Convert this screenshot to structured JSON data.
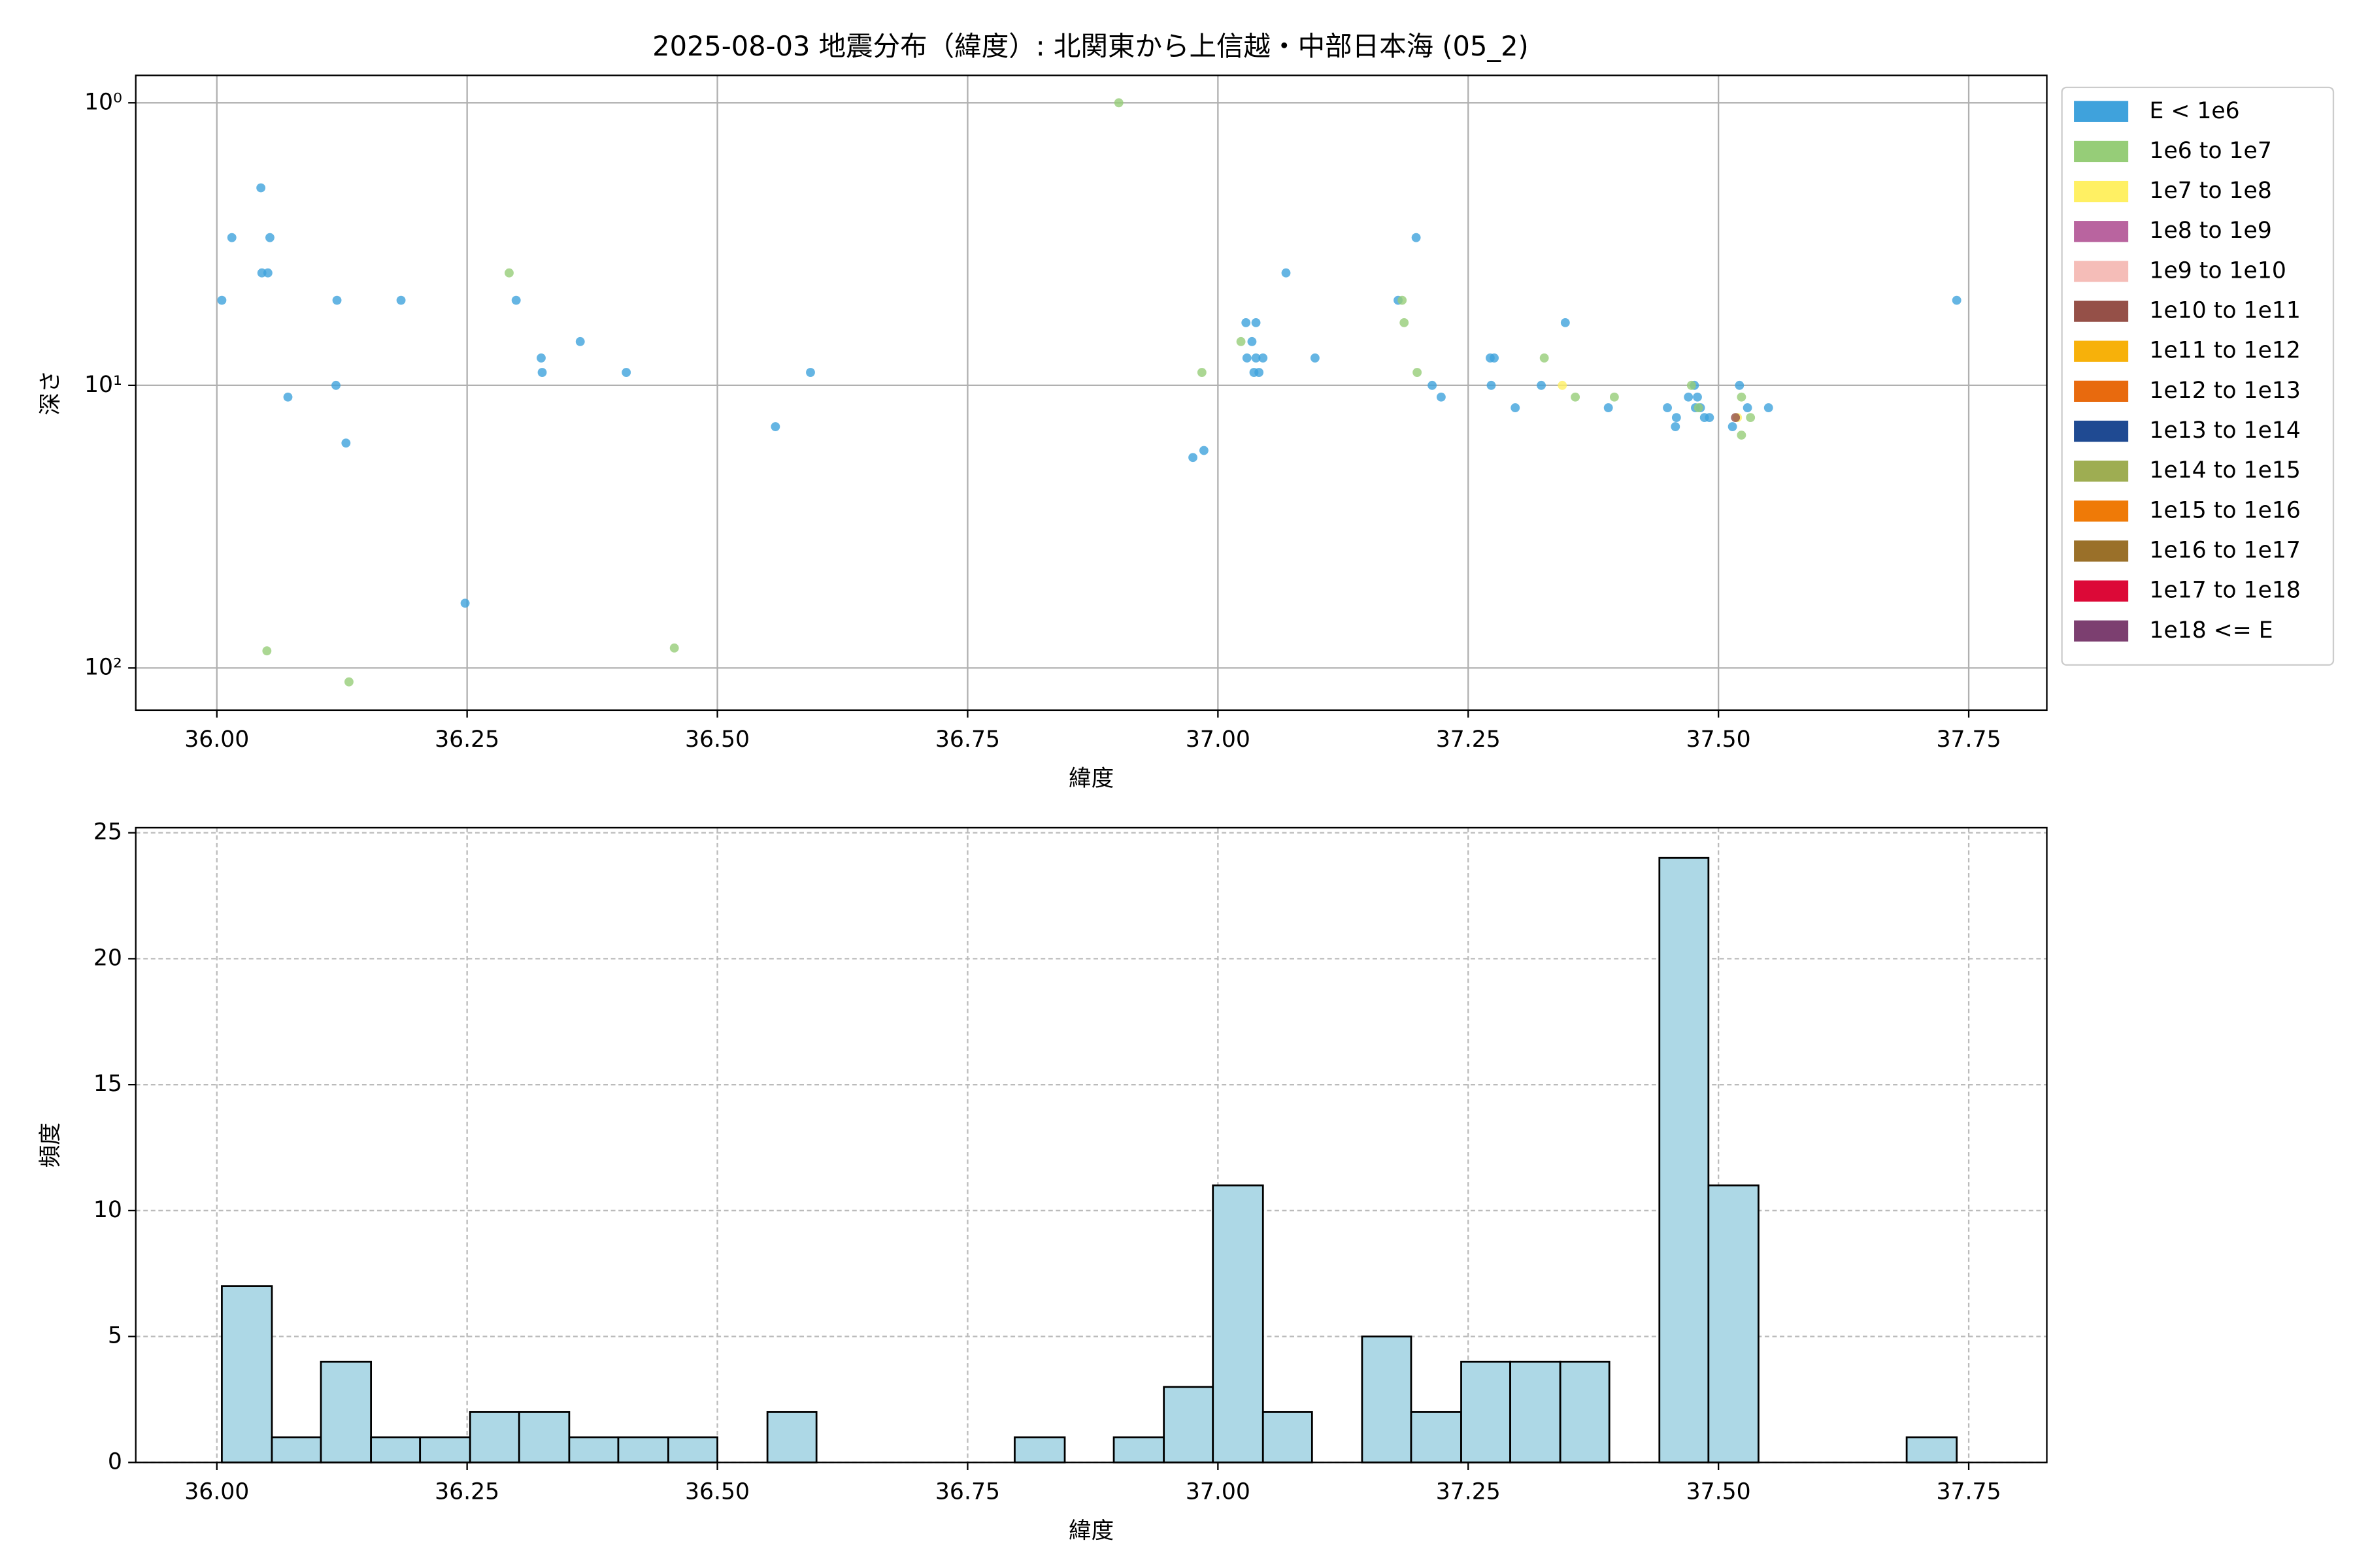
{
  "chart_data": [
    {
      "type": "scatter",
      "title": "2025-08-03 地震分布（緯度）: 北関東から上信越・中部日本海 (05_2)",
      "x_label": "緯度",
      "y_label": "深さ",
      "yscale": "log",
      "grid": true,
      "grid_style": "solid",
      "legend_loc": "outside right",
      "xlim": [
        35.919,
        37.828
      ],
      "ylim": [
        141,
        0.8
      ],
      "xticks": [
        {
          "value": 36,
          "label": "36.00"
        },
        36.25,
        {
          "value": 36.5,
          "label": "36.50"
        },
        36.75,
        {
          "value": 37,
          "label": "37.00"
        },
        37.25,
        {
          "value": 37.5,
          "label": "37.50"
        },
        37.75
      ],
      "yticks": [
        {
          "value": 1,
          "label": "10⁰"
        },
        {
          "value": 10,
          "label": "10¹"
        },
        {
          "value": 100,
          "label": "10²"
        }
      ],
      "series": [
        {
          "name": "E < 1e6",
          "color": "#3fa2dc",
          "x": [
            36.005,
            36.015,
            36.044,
            36.045,
            36.051,
            36.053,
            36.071,
            36.12,
            36.119,
            36.129,
            36.184,
            36.248,
            36.299,
            36.324,
            36.325,
            36.363,
            36.409,
            36.558,
            36.593,
            36.975,
            36.986,
            37.028,
            37.038,
            37.034,
            37.029,
            37.038,
            37.045,
            37.036,
            37.041,
            37.068,
            37.097,
            37.18,
            37.198,
            37.214,
            37.223,
            37.272,
            37.276,
            37.273,
            37.297,
            37.323,
            37.347,
            37.39,
            37.449,
            37.458,
            37.457,
            37.47,
            37.479,
            37.476,
            37.477,
            37.482,
            37.486,
            37.491,
            37.514,
            37.521,
            37.529,
            37.55,
            37.738
          ],
          "y": [
            5,
            3,
            2,
            4,
            4,
            3,
            11,
            5,
            10,
            16,
            5,
            59,
            5,
            8,
            9,
            7,
            9,
            14,
            9,
            18,
            17,
            6,
            6,
            7,
            8,
            8,
            8,
            9,
            9,
            4,
            8,
            5,
            3,
            10,
            11,
            8,
            8,
            10,
            12,
            10,
            6,
            12,
            12,
            13,
            14,
            11,
            11,
            10,
            12,
            12,
            13,
            13,
            14,
            10,
            12,
            12,
            5
          ]
        },
        {
          "name": "1e6 to 1e7",
          "color": "#96cd78",
          "x": [
            36.901,
            36.292,
            36.05,
            36.132,
            36.457,
            36.984,
            37.023,
            37.184,
            37.186,
            37.199,
            37.326,
            37.357,
            37.396,
            37.473,
            37.523,
            37.523,
            37.532,
            37.48
          ],
          "y": [
            1,
            4,
            87,
            112,
            85,
            9,
            7,
            5,
            6,
            9,
            8,
            11,
            11,
            10,
            11,
            15,
            13,
            12
          ]
        },
        {
          "name": "1e7 to 1e8",
          "color": "#fff063",
          "x": [
            37.344,
            37.519
          ],
          "y": [
            10,
            13
          ]
        },
        {
          "name": "1e8 to 1e9",
          "color": "#b9649f",
          "x": [],
          "y": []
        },
        {
          "name": "1e9 to 1e10",
          "color": "#f5bdb8",
          "x": [],
          "y": []
        },
        {
          "name": "1e10 to 1e11",
          "color": "#955048",
          "x": [
            37.517
          ],
          "y": [
            13
          ]
        },
        {
          "name": "1e11 to 1e12",
          "color": "#f7b10a",
          "x": [],
          "y": []
        },
        {
          "name": "1e12 to 1e13",
          "color": "#e86a0e",
          "x": [],
          "y": []
        },
        {
          "name": "1e13 to 1e14",
          "color": "#1f4a92",
          "x": [],
          "y": []
        },
        {
          "name": "1e14 to 1e15",
          "color": "#9ead52",
          "x": [],
          "y": []
        },
        {
          "name": "1e15 to 1e16",
          "color": "#ef7a07",
          "x": [],
          "y": []
        },
        {
          "name": "1e16 to 1e17",
          "color": "#9a7029",
          "x": [],
          "y": []
        },
        {
          "name": "1e17 to 1e18",
          "color": "#dc0937",
          "x": [],
          "y": []
        },
        {
          "name": "1e18 <= E",
          "color": "#7c3f70",
          "x": [],
          "y": []
        }
      ]
    },
    {
      "type": "histogram",
      "x_label": "緯度",
      "y_label": "頻度",
      "grid": true,
      "grid_style": "dashed",
      "color": "#add8e6",
      "edgecolor": "#000000",
      "xlim": [
        35.919,
        37.828
      ],
      "ylim": [
        0,
        25.2
      ],
      "xticks": [
        {
          "value": 36,
          "label": "36.00"
        },
        36.25,
        {
          "value": 36.5,
          "label": "36.50"
        },
        36.75,
        {
          "value": 37,
          "label": "37.00"
        },
        37.25,
        {
          "value": 37.5,
          "label": "37.50"
        },
        37.75
      ],
      "yticks": [
        0,
        5,
        10,
        15,
        20,
        25
      ],
      "bins": [
        36.005,
        36.055,
        36.104,
        36.154,
        36.203,
        36.253,
        36.302,
        36.352,
        36.401,
        36.451,
        36.5,
        36.55,
        36.599,
        36.649,
        36.698,
        36.748,
        36.797,
        36.847,
        36.896,
        36.946,
        36.995,
        37.045,
        37.094,
        37.144,
        37.193,
        37.243,
        37.292,
        37.342,
        37.391,
        37.441,
        37.49,
        37.54,
        37.589,
        37.639,
        37.688,
        37.738
      ],
      "counts": [
        7,
        1,
        4,
        1,
        1,
        2,
        2,
        1,
        1,
        1,
        0,
        2,
        0,
        0,
        0,
        0,
        1,
        0,
        1,
        3,
        11,
        2,
        0,
        5,
        2,
        4,
        4,
        4,
        0,
        24,
        11,
        0,
        0,
        0,
        1
      ]
    }
  ]
}
